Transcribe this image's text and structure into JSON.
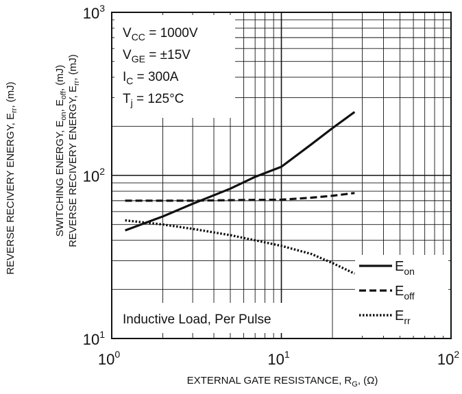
{
  "chart_data": {
    "type": "line",
    "x_scale": "log",
    "y_scale": "log",
    "xlim": [
      1,
      100
    ],
    "ylim": [
      10,
      1000
    ],
    "x_ticks": [
      {
        "base": "10",
        "exp": "0"
      },
      {
        "base": "10",
        "exp": "1"
      },
      {
        "base": "10",
        "exp": "2"
      }
    ],
    "y_ticks": [
      {
        "base": "10",
        "exp": "1"
      },
      {
        "base": "10",
        "exp": "2"
      },
      {
        "base": "10",
        "exp": "3"
      }
    ],
    "xlabel": {
      "text": "EXTERNAL GATE RESISTANCE, R",
      "sub": "G",
      "tail": ", (Ω)"
    },
    "ylabel_left": {
      "text": "REVERSE RECIVERY ENERGY, E",
      "sub": "rr",
      "tail": ", (mJ)"
    },
    "ylabel_inner_1": {
      "text": "SWITCHING ENERGY, E",
      "sub1": "on",
      "mid": ", E",
      "sub2": "off",
      "tail": ", (mJ)"
    },
    "ylabel_inner_2": {
      "text": "REVERSE RECIVERY ENERGY, E",
      "sub": "rr",
      "tail": ", (mJ)"
    },
    "annotation_box": [
      {
        "main": "V",
        "sub": "CC",
        "tail": " = 1000V"
      },
      {
        "main": "V",
        "sub": "GE",
        "tail": " = ±15V"
      },
      {
        "main": "I",
        "sub": "C",
        "tail": " = 300A"
      },
      {
        "main": "T",
        "sub": "j",
        "tail": " = 125°C"
      }
    ],
    "note": "Inductive Load, Per Pulse",
    "grid": true,
    "legend_position": "bottom-right",
    "series": [
      {
        "name": "E",
        "sub": "on",
        "style": "solid",
        "x": [
          1.2,
          2,
          3,
          5,
          7,
          10,
          15,
          20,
          27
        ],
        "y": [
          46,
          56,
          67,
          83,
          98,
          113,
          155,
          195,
          245
        ]
      },
      {
        "name": "E",
        "sub": "off",
        "style": "dashed",
        "x": [
          1.2,
          2,
          3,
          5,
          10,
          15,
          20,
          27
        ],
        "y": [
          70,
          70,
          70,
          70.5,
          71,
          73,
          75,
          78
        ]
      },
      {
        "name": "E",
        "sub": "rr",
        "style": "dotted",
        "x": [
          1.2,
          2,
          3,
          5,
          7,
          10,
          15,
          20,
          27
        ],
        "y": [
          53,
          50,
          47,
          43,
          40,
          37,
          33,
          29,
          25
        ]
      }
    ]
  }
}
